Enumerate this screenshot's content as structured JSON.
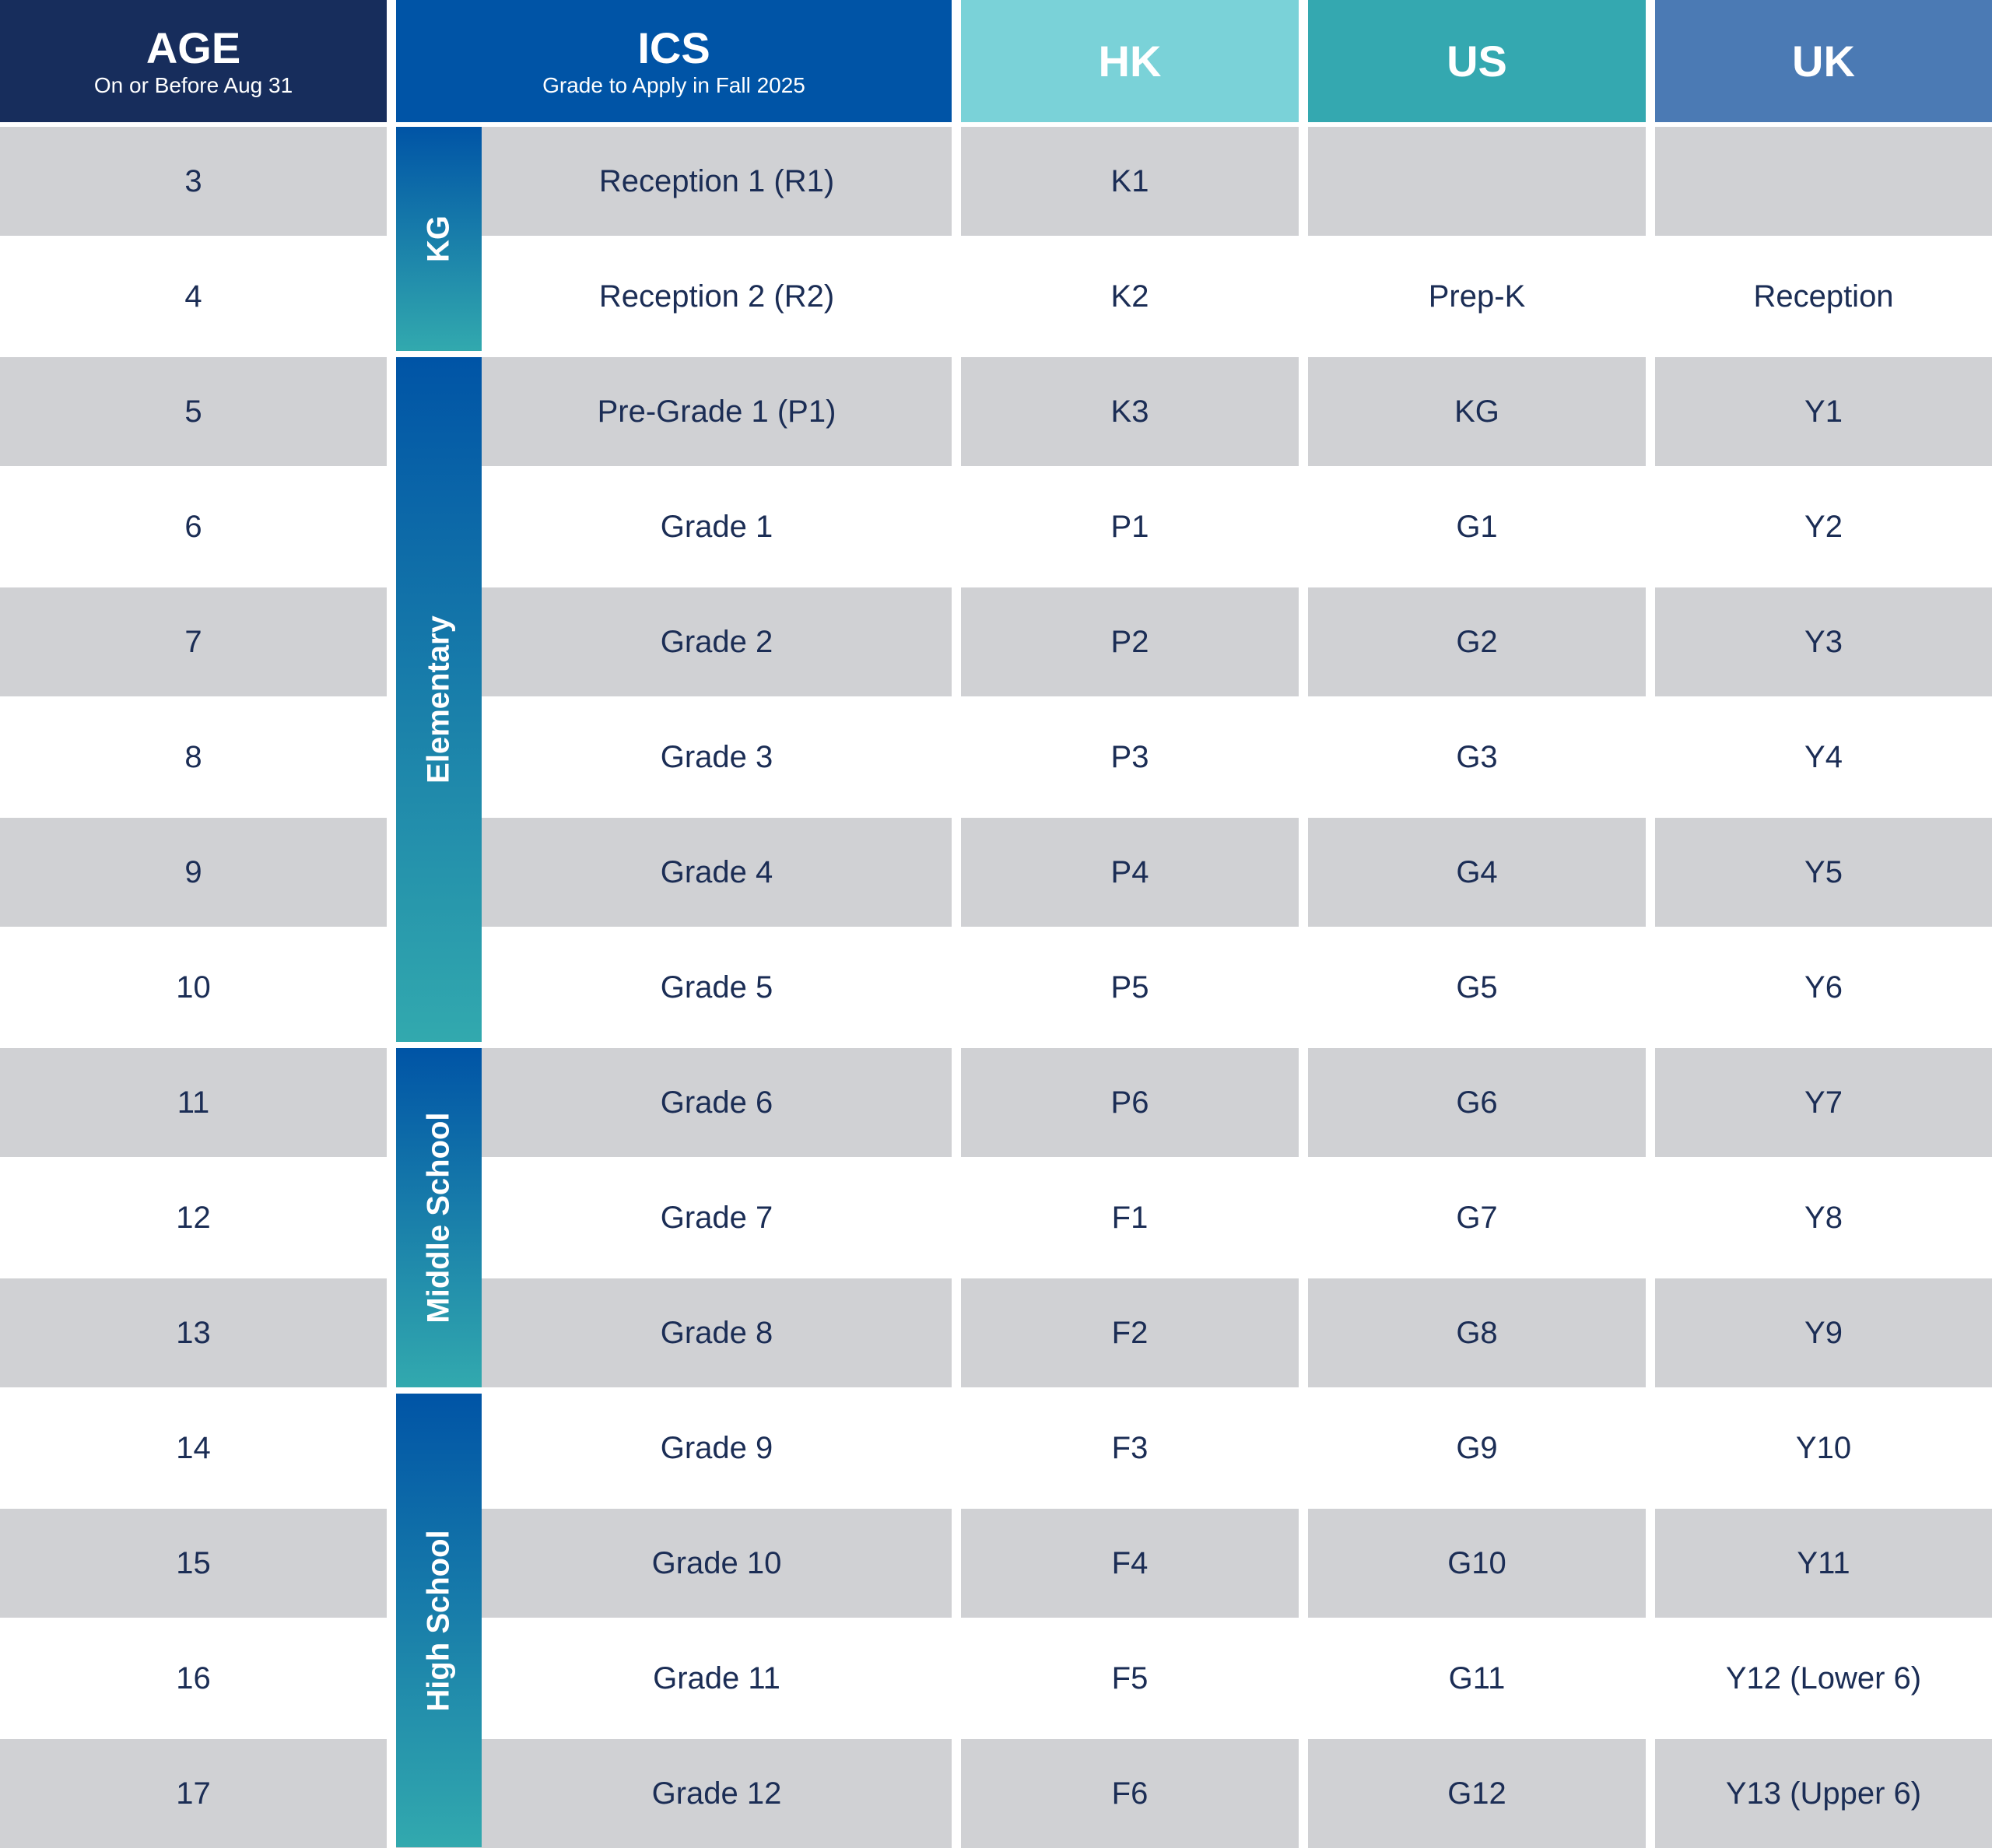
{
  "colors": {
    "age_header": "#172d5c",
    "ics_header": "#0054a6",
    "hk_header": "#7ad2d8",
    "us_header": "#34a8b0",
    "uk_header": "#4b7ab4",
    "row_grey": "#d0d1d4",
    "text": "#1b2d55"
  },
  "headers": [
    {
      "key": "age",
      "title": "AGE",
      "subtitle": "On or Before Aug 31"
    },
    {
      "key": "ics",
      "title": "ICS",
      "subtitle": "Grade to Apply in Fall 2025"
    },
    {
      "key": "hk",
      "title": "HK",
      "subtitle": ""
    },
    {
      "key": "us",
      "title": "US",
      "subtitle": ""
    },
    {
      "key": "uk",
      "title": "UK",
      "subtitle": ""
    }
  ],
  "segments": [
    {
      "label": "KG",
      "first_row": 0,
      "last_row": 1
    },
    {
      "label": "Elementary",
      "first_row": 2,
      "last_row": 7
    },
    {
      "label": "Middle School",
      "first_row": 8,
      "last_row": 10
    },
    {
      "label": "High School",
      "first_row": 11,
      "last_row": 14
    }
  ],
  "rows": [
    {
      "age": "3",
      "ics": "Reception 1 (R1)",
      "hk": "K1",
      "us": "",
      "uk": ""
    },
    {
      "age": "4",
      "ics": "Reception 2 (R2)",
      "hk": "K2",
      "us": "Prep-K",
      "uk": "Reception"
    },
    {
      "age": "5",
      "ics": "Pre-Grade 1 (P1)",
      "hk": "K3",
      "us": "KG",
      "uk": "Y1"
    },
    {
      "age": "6",
      "ics": "Grade 1",
      "hk": "P1",
      "us": "G1",
      "uk": "Y2"
    },
    {
      "age": "7",
      "ics": "Grade 2",
      "hk": "P2",
      "us": "G2",
      "uk": "Y3"
    },
    {
      "age": "8",
      "ics": "Grade 3",
      "hk": "P3",
      "us": "G3",
      "uk": "Y4"
    },
    {
      "age": "9",
      "ics": "Grade 4",
      "hk": "P4",
      "us": "G4",
      "uk": "Y5"
    },
    {
      "age": "10",
      "ics": "Grade 5",
      "hk": "P5",
      "us": "G5",
      "uk": "Y6"
    },
    {
      "age": "11",
      "ics": "Grade 6",
      "hk": "P6",
      "us": "G6",
      "uk": "Y7"
    },
    {
      "age": "12",
      "ics": "Grade 7",
      "hk": "F1",
      "us": "G7",
      "uk": "Y8"
    },
    {
      "age": "13",
      "ics": "Grade 8",
      "hk": "F2",
      "us": "G8",
      "uk": "Y9"
    },
    {
      "age": "14",
      "ics": "Grade 9",
      "hk": "F3",
      "us": "G9",
      "uk": "Y10"
    },
    {
      "age": "15",
      "ics": "Grade 10",
      "hk": "F4",
      "us": "G10",
      "uk": "Y11"
    },
    {
      "age": "16",
      "ics": "Grade 11",
      "hk": "F5",
      "us": "G11",
      "uk": "Y12 (Lower 6)"
    },
    {
      "age": "17",
      "ics": "Grade 12",
      "hk": "F6",
      "us": "G12",
      "uk": "Y13 (Upper 6)"
    }
  ]
}
